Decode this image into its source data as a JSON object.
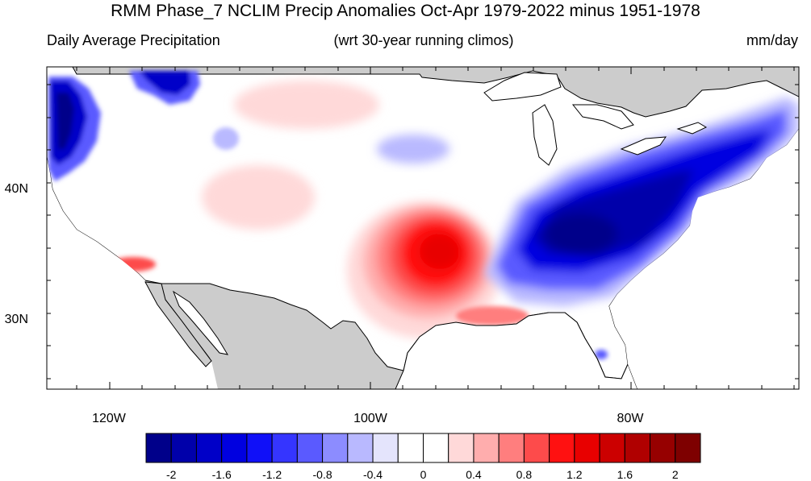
{
  "title": "RMM Phase_7 NCLIM Precip Anomalies Oct-Apr 1979-2022 minus 1951-1978",
  "subtitle_left": "Daily Average Precipitation",
  "subtitle_center": "(wrt 30-year running climos)",
  "subtitle_right": "mm/day",
  "lat_labels": [
    "40N",
    "30N"
  ],
  "lon_labels": [
    "120W",
    "100W",
    "80W"
  ],
  "colorbar": {
    "colors": [
      "#00008a",
      "#0000aa",
      "#0000c8",
      "#0000e0",
      "#1010f8",
      "#3535ff",
      "#5a5aff",
      "#8c8cff",
      "#b9b9ff",
      "#e4e4fc",
      "#ffffff",
      "#ffffff",
      "#ffd9d9",
      "#ffadad",
      "#ff7e7e",
      "#fd4b4b",
      "#ff1111",
      "#e80000",
      "#cc0000",
      "#b00000",
      "#960000",
      "#7e0000"
    ],
    "labels": [
      "-2",
      "-1.6",
      "-1.2",
      "-0.8",
      "-0.4",
      "0",
      "0.4",
      "0.8",
      "1.2",
      "1.6",
      "2"
    ]
  },
  "colors": {
    "land_mask": "#cccccc",
    "neutral": "#ffffff",
    "strong_negative": "#0000c8",
    "strong_positive": "#ff1111"
  }
}
